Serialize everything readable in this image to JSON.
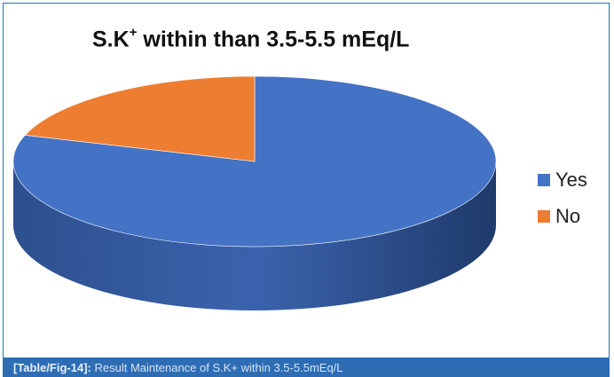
{
  "chart_data": {
    "type": "pie",
    "title": "S.K",
    "title_sup": "+",
    "title_rest": " within than 3.5-5.5 mEq/L",
    "categories": [
      "Yes",
      "No"
    ],
    "values": [
      80,
      20
    ],
    "colors": [
      "#4472c4",
      "#ed7d31"
    ],
    "style": "3d",
    "legend_position": "right"
  },
  "caption": {
    "label": "[Table/Fig-14]:",
    "text": "Result Maintenance of S.K+ within 3.5-5.5mEq/L"
  }
}
